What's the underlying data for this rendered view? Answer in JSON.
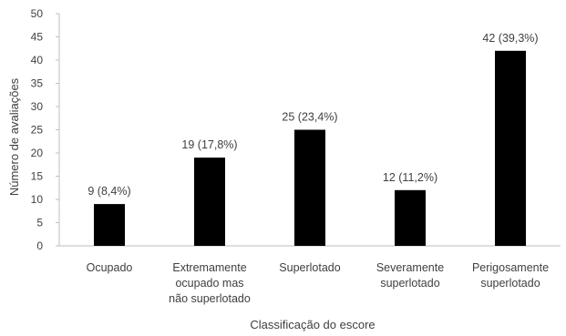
{
  "chart_data": {
    "type": "bar",
    "categories": [
      [
        "Ocupado"
      ],
      [
        "Extremamente",
        "ocupado mas",
        "não superlotado"
      ],
      [
        "Superlotado"
      ],
      [
        "Severamente",
        "superlotado"
      ],
      [
        "Perigosamente",
        "superlotado"
      ]
    ],
    "values": [
      9,
      19,
      25,
      12,
      42
    ],
    "data_labels": [
      "9 (8,4%)",
      "19 (17,8%)",
      "25 (23,4%)",
      "12 (11,2%)",
      "42 (39,3%)"
    ],
    "title": "",
    "xlabel": "Classificação do escore",
    "ylabel": "Número de avaliações",
    "ylim": [
      0,
      50
    ],
    "yticks": [
      0,
      5,
      10,
      15,
      20,
      25,
      30,
      35,
      40,
      45,
      50
    ],
    "grid": false,
    "legend": "none",
    "colors": {
      "bar": "#000000",
      "axis": "#bfbfbf",
      "text": "#404040"
    }
  }
}
